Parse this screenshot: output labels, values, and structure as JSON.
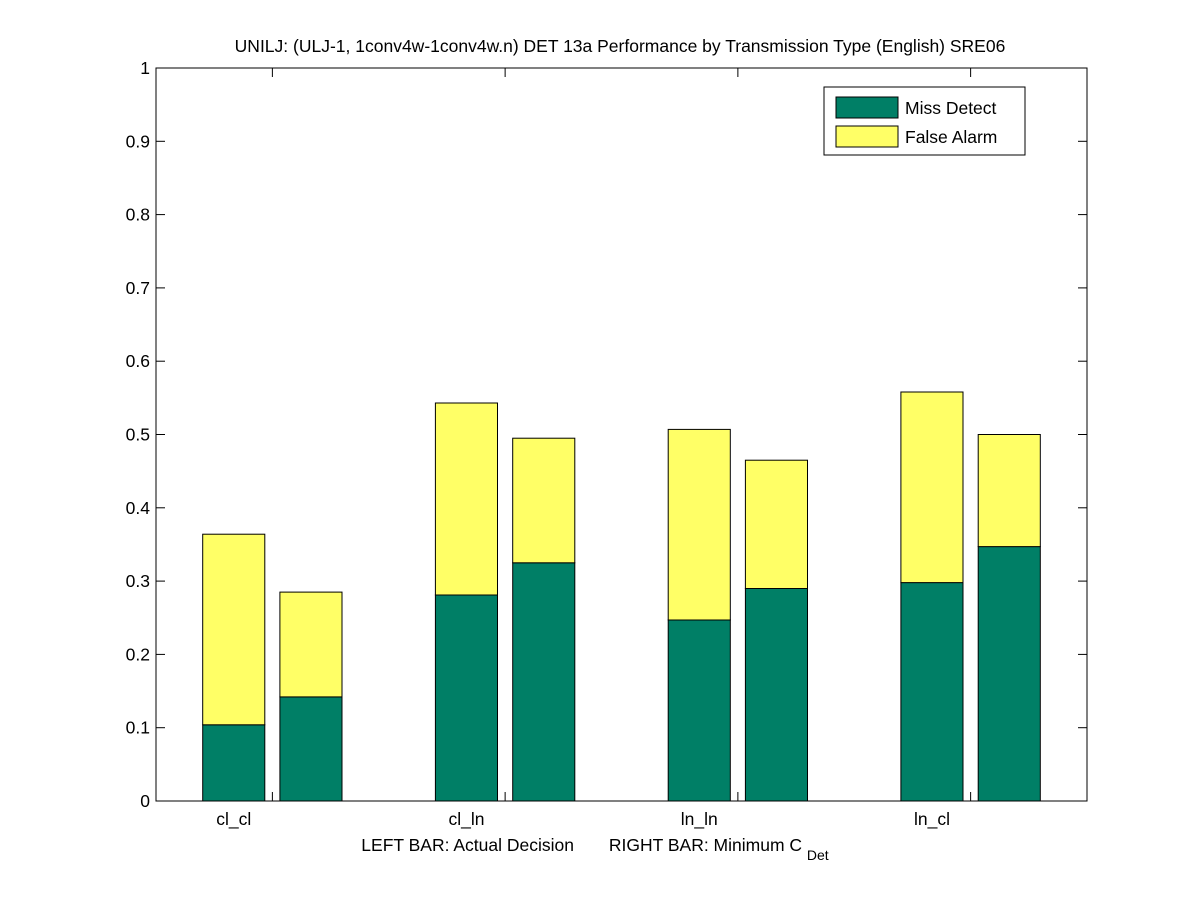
{
  "chart_data": {
    "type": "bar",
    "stacked": true,
    "title": "UNILJ: (ULJ-1, 1conv4w-1conv4w.n) DET 13a Performance by Transmission Type (English) SRE06",
    "xlabel_left": "LEFT BAR: Actual Decision",
    "xlabel_right": "RIGHT BAR: Minimum C",
    "xlabel_right_subscript": "Det",
    "ylim": [
      0,
      1
    ],
    "yticks": [
      "0",
      "0.1",
      "0.2",
      "0.3",
      "0.4",
      "0.5",
      "0.6",
      "0.7",
      "0.8",
      "0.9",
      "1"
    ],
    "categories": [
      "cl_cl",
      "cl_ln",
      "ln_ln",
      "ln_cl"
    ],
    "bars_per_category": [
      "Actual Decision",
      "Minimum C_Det"
    ],
    "grid": false,
    "legend_position": "top-right",
    "series": [
      {
        "name": "Miss Detect",
        "color": "#007f66",
        "actual_decision": [
          0.104,
          0.281,
          0.247,
          0.298
        ],
        "minimum_cdet": [
          0.142,
          0.325,
          0.29,
          0.347
        ]
      },
      {
        "name": "False Alarm",
        "color": "#ffff66",
        "actual_decision": [
          0.26,
          0.262,
          0.26,
          0.26
        ],
        "minimum_cdet": [
          0.143,
          0.17,
          0.175,
          0.153
        ]
      }
    ]
  }
}
